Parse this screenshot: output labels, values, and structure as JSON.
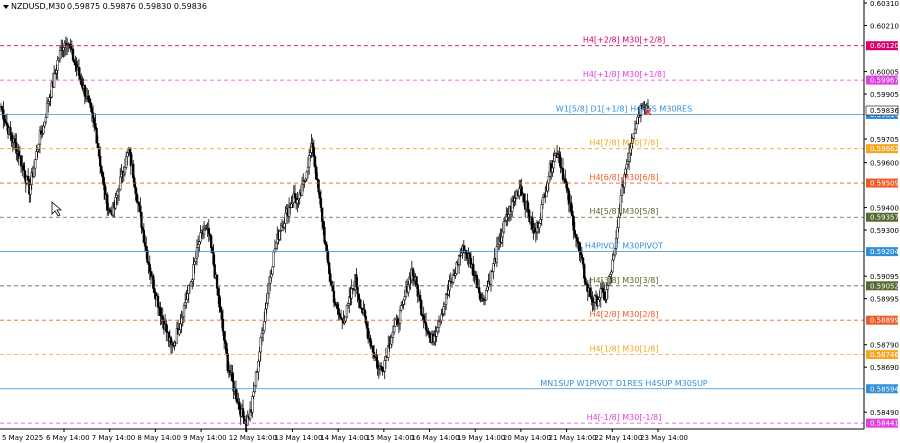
{
  "header": {
    "symbol": "NZDUSD,M30",
    "ohlc": "0.59875 0.59876 0.59830 0.59836"
  },
  "chart_data": {
    "type": "candlestick",
    "symbol": "NZDUSD",
    "timeframe": "M30",
    "ylim": [
      0.58415,
      0.6031
    ],
    "grid": false,
    "y_ticks": [
      "0.60310",
      "0.60210",
      "0.60005",
      "0.59905",
      "0.59705",
      "0.59600",
      "0.59400",
      "0.59300",
      "0.59095",
      "0.58995",
      "0.58790",
      "0.58690",
      "0.58490"
    ],
    "x_ticks": [
      "5 May 2025",
      "6 May 14:00",
      "7 May 14:00",
      "8 May 14:00",
      "9 May 14:00",
      "12 May 14:00",
      "13 May 14:00",
      "14 May 14:00",
      "15 May 14:00",
      "16 May 14:00",
      "19 May 14:00",
      "20 May 14:00",
      "21 May 14:00",
      "22 May 14:00",
      "23 May 14:00"
    ],
    "series_close": [
      0.5985,
      0.5978,
      0.5972,
      0.5968,
      0.5962,
      0.5955,
      0.5948,
      0.5958,
      0.597,
      0.5976,
      0.5988,
      0.5995,
      0.6005,
      0.6012,
      0.6015,
      0.6008,
      0.6002,
      0.5996,
      0.599,
      0.5982,
      0.5975,
      0.596,
      0.5945,
      0.5938,
      0.594,
      0.595,
      0.5958,
      0.5965,
      0.5955,
      0.5942,
      0.593,
      0.5918,
      0.5908,
      0.59,
      0.5892,
      0.5885,
      0.5878,
      0.5882,
      0.589,
      0.5898,
      0.5905,
      0.5915,
      0.5925,
      0.593,
      0.5928,
      0.5915,
      0.59,
      0.5885,
      0.587,
      0.5862,
      0.5855,
      0.5848,
      0.5845,
      0.585,
      0.5865,
      0.588,
      0.5895,
      0.591,
      0.5922,
      0.593,
      0.5935,
      0.594,
      0.5945,
      0.5942,
      0.595,
      0.596,
      0.5968,
      0.595,
      0.5935,
      0.5918,
      0.5905,
      0.5895,
      0.589,
      0.5892,
      0.59,
      0.5908,
      0.5898,
      0.589,
      0.5882,
      0.5875,
      0.5868,
      0.587,
      0.5878,
      0.5885,
      0.589,
      0.5895,
      0.5905,
      0.5912,
      0.5905,
      0.5895,
      0.5888,
      0.588,
      0.5885,
      0.5892,
      0.5898,
      0.5905,
      0.591,
      0.5918,
      0.5922,
      0.5918,
      0.5912,
      0.5905,
      0.5898,
      0.5905,
      0.5912,
      0.592,
      0.5928,
      0.5935,
      0.594,
      0.5945,
      0.595,
      0.5942,
      0.5935,
      0.5928,
      0.5935,
      0.5945,
      0.5955,
      0.5962,
      0.5965,
      0.5955,
      0.5945,
      0.5935,
      0.5925,
      0.5915,
      0.5905,
      0.59,
      0.5898,
      0.5902,
      0.59,
      0.591,
      0.592,
      0.594,
      0.5955,
      0.5965,
      0.5975,
      0.5982,
      0.5987,
      0.5984
    ],
    "levels": [
      {
        "label": "H4[+2/8] M30[+2/8]",
        "value": 0.6012,
        "tag": "0.60120",
        "color": "#d6006e",
        "style": "dashed"
      },
      {
        "label": "H4[+1/8] M30[+1/8]",
        "value": 0.59967,
        "tag": "0.59967",
        "color": "#e040e0",
        "style": "dashed"
      },
      {
        "label": "W1[5/8] D1[+1/8] H4RES M30RES",
        "value": 0.59814,
        "tag": "0.59814",
        "color": "#2f8fd8",
        "style": "solid"
      },
      {
        "label": "H4[7/8] M30[7/8]",
        "value": 0.59662,
        "tag": "0.59662",
        "color": "#f5a623",
        "style": "dashed"
      },
      {
        "label": "H4[6/8] M30[6/8]",
        "value": 0.59509,
        "tag": "0.59509",
        "color": "#f05a28",
        "style": "dashed"
      },
      {
        "label": "H4[5/8] M30[5/8]",
        "value": 0.59357,
        "tag": "0.59357",
        "color": "#556b2f",
        "style": "dashed"
      },
      {
        "label": "H4PIVOT M30PIVOT",
        "value": 0.59204,
        "tag": "0.59204",
        "color": "#2f8fd8",
        "style": "solid"
      },
      {
        "label": "H4[3/8] M30[3/8]",
        "value": 0.59052,
        "tag": "0.59052",
        "color": "#556b2f",
        "style": "dashed"
      },
      {
        "label": "H4[2/8] M30[2/8]",
        "value": 0.58899,
        "tag": "0.58899",
        "color": "#f05a28",
        "style": "dashed"
      },
      {
        "label": "H4[1/8] M30[1/8]",
        "value": 0.58746,
        "tag": "0.58746",
        "color": "#f5a623",
        "style": "dashed"
      },
      {
        "label": "MN1SUP W1PIVOT D1RES H4SUP M30SUP",
        "value": 0.58594,
        "tag": "0.58594",
        "color": "#2f8fd8",
        "style": "solid"
      },
      {
        "label": "H4[-1/8] M30[-1/8]",
        "value": 0.58441,
        "tag": "0.58441",
        "color": "#e040e0",
        "style": "dashed"
      }
    ],
    "current_price": "0.59836"
  }
}
